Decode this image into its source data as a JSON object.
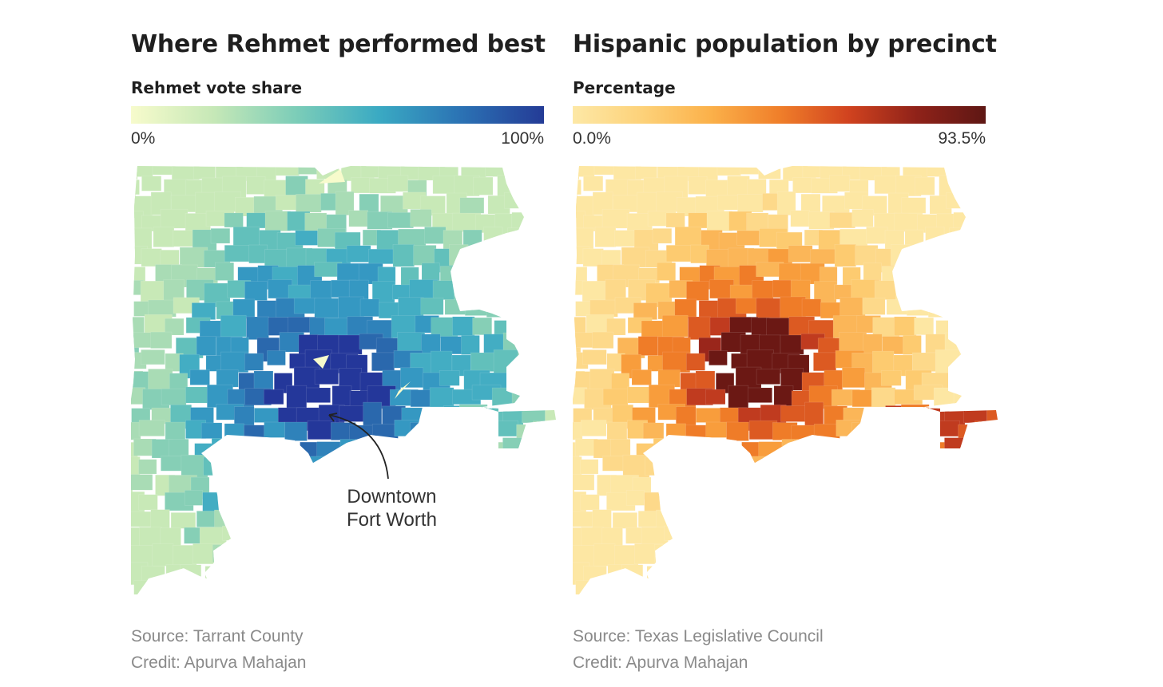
{
  "left": {
    "title": "Where Rehmet performed best",
    "legend_title": "Rehmet vote share",
    "legend_min": "0%",
    "legend_max": "100%",
    "legend_colors": [
      "#f7fbcc",
      "#c6e8b7",
      "#7ccdb8",
      "#3aaac3",
      "#2b72b4",
      "#243b96"
    ],
    "annotation_line1": "Downtown",
    "annotation_line2": "Fort Worth",
    "source": "Source: Tarrant County",
    "credit": "Credit: Apurva Mahajan"
  },
  "right": {
    "title": "Hispanic population by precinct",
    "legend_title": "Percentage",
    "legend_min": "0.0%",
    "legend_max": "93.5%",
    "legend_colors": [
      "#fde8a6",
      "#fdd27a",
      "#fbb14a",
      "#f07f2a",
      "#d1431f",
      "#8f2219",
      "#5e1714"
    ],
    "source": "Source: Texas Legislative Council",
    "credit": "Credit: Apurva Mahajan"
  }
}
